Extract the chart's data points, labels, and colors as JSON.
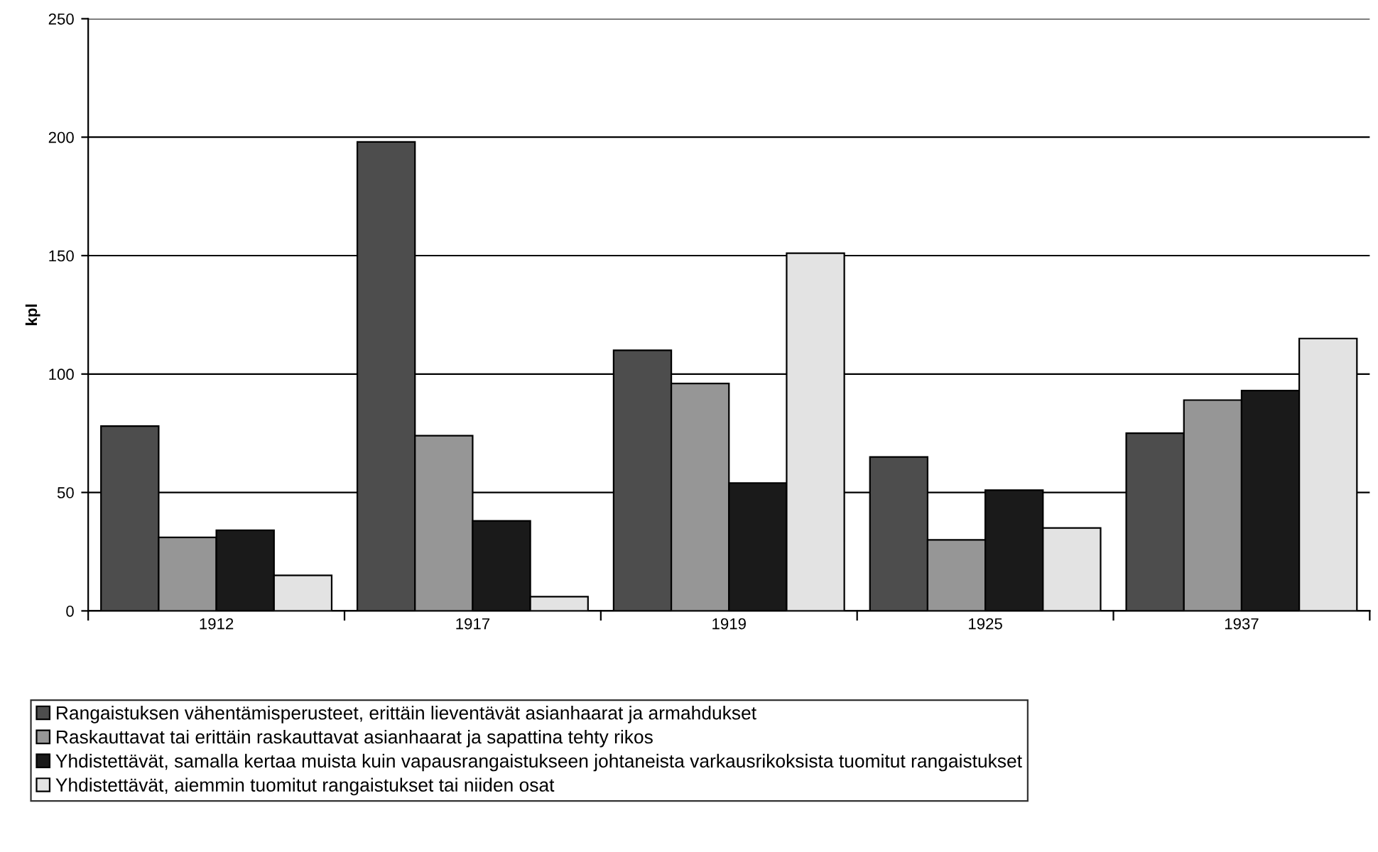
{
  "chart_data": {
    "type": "bar",
    "ylabel": "kpl",
    "categories": [
      "1912",
      "1917",
      "1919",
      "1925",
      "1937"
    ],
    "series": [
      {
        "name": "Rangaistuksen vähentämisperusteet, erittäin lieventävät asianhaarat ja armahdukset",
        "color": "#4d4d4d",
        "values": [
          78,
          198,
          110,
          65,
          75
        ]
      },
      {
        "name": "Raskauttavat tai erittäin raskauttavat asianhaarat ja sapattina tehty rikos",
        "color": "#969696",
        "values": [
          31,
          74,
          96,
          30,
          89
        ]
      },
      {
        "name": "Yhdistettävät, samalla kertaa muista kuin vapausrangaistukseen johtaneista varkausrikoksista tuomitut rangaistukset",
        "color": "#1a1a1a",
        "values": [
          34,
          38,
          54,
          51,
          93
        ]
      },
      {
        "name": "Yhdistettävät, aiemmin tuomitut rangaistukset tai niiden osat",
        "color": "#e3e3e3",
        "values": [
          15,
          6,
          151,
          35,
          115
        ]
      }
    ],
    "ylim": [
      0,
      250
    ],
    "yticks": [
      0,
      50,
      100,
      150,
      200,
      250
    ],
    "grid": "y",
    "legend": "bottom"
  }
}
